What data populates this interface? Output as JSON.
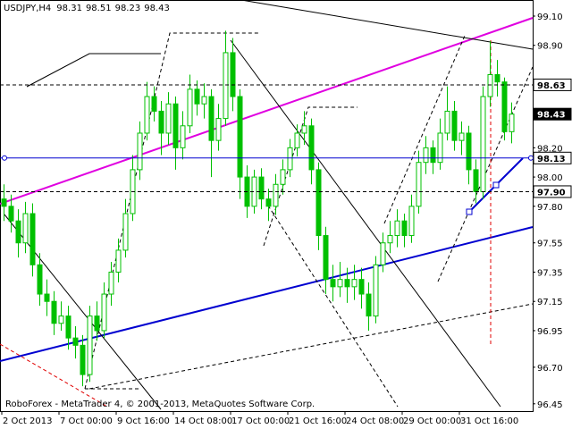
{
  "chart_data": {
    "type": "candlestick",
    "symbol": "USDJPY,H4",
    "footer": "RoboForex - MetaTrader 4, © 2001-2013, MetaQuotes Software Corp.",
    "categories": [
      "2 Oct 2013",
      null,
      null,
      null,
      null,
      null,
      null,
      null,
      "7 Oct 00:00",
      null,
      null,
      null,
      null,
      null,
      null,
      null,
      "9 Oct 16:00",
      null,
      null,
      null,
      null,
      null,
      null,
      null,
      "14 Oct 08:00",
      null,
      null,
      null,
      null,
      null,
      null,
      null,
      "17 Oct 00:00",
      null,
      null,
      null,
      null,
      null,
      null,
      null,
      "21 Oct 16:00",
      null,
      null,
      null,
      null,
      null,
      null,
      null,
      "24 Oct 08:00",
      null,
      null,
      null,
      null,
      null,
      null,
      null,
      "29 Oct 00:00",
      null,
      null,
      null,
      null,
      null,
      null,
      null,
      "31 Oct 16:00",
      null,
      null,
      null,
      null,
      null,
      null,
      null
    ],
    "open": [
      97.85,
      97.8,
      97.7,
      97.55,
      97.75,
      97.4,
      97.2,
      97.15,
      97.0,
      97.05,
      96.9,
      96.85,
      96.65,
      97.05,
      96.95,
      97.2,
      97.35,
      97.5,
      97.75,
      98.05,
      98.3,
      98.55,
      98.45,
      98.3,
      98.5,
      98.2,
      98.35,
      98.6,
      98.5,
      98.55,
      98.25,
      98.4,
      98.85,
      98.55,
      98.0,
      97.8,
      98.0,
      97.85,
      97.8,
      97.95,
      98.05,
      98.2,
      98.3,
      98.35,
      98.05,
      97.6,
      97.3,
      97.25,
      97.3,
      97.25,
      97.3,
      97.2,
      97.05,
      97.4,
      97.55,
      97.6,
      97.7,
      97.6,
      97.8,
      98.1,
      98.2,
      98.1,
      98.3,
      98.45,
      98.25,
      98.3,
      98.05,
      97.9,
      98.55,
      98.7,
      98.65,
      98.31
    ],
    "high": [
      97.95,
      97.88,
      97.78,
      97.83,
      97.82,
      97.48,
      97.3,
      97.22,
      97.15,
      97.12,
      96.98,
      96.92,
      97.12,
      97.15,
      97.28,
      97.42,
      97.58,
      97.85,
      98.15,
      98.38,
      98.65,
      98.62,
      98.52,
      98.58,
      98.55,
      98.45,
      98.7,
      98.66,
      98.64,
      98.6,
      98.5,
      99.0,
      98.95,
      98.6,
      98.08,
      98.05,
      98.06,
      97.92,
      98.02,
      98.12,
      98.26,
      98.36,
      98.45,
      98.4,
      98.1,
      97.66,
      97.4,
      97.42,
      97.38,
      97.4,
      97.38,
      97.28,
      97.46,
      97.62,
      97.7,
      97.78,
      97.75,
      97.88,
      98.18,
      98.28,
      98.25,
      98.4,
      98.62,
      98.52,
      98.38,
      98.35,
      98.12,
      98.62,
      98.93,
      98.8,
      98.68,
      98.51
    ],
    "low": [
      97.7,
      97.62,
      97.45,
      97.48,
      97.32,
      97.12,
      97.05,
      96.92,
      96.95,
      96.82,
      96.76,
      96.57,
      96.6,
      96.88,
      96.9,
      97.12,
      97.28,
      97.45,
      97.7,
      97.98,
      98.25,
      98.38,
      98.15,
      98.22,
      98.05,
      98.12,
      98.3,
      98.42,
      98.4,
      98.0,
      98.18,
      98.35,
      98.45,
      97.85,
      97.72,
      97.75,
      97.78,
      97.7,
      97.74,
      97.88,
      98.0,
      98.14,
      98.22,
      97.95,
      97.5,
      97.2,
      97.15,
      97.18,
      97.14,
      97.16,
      97.1,
      96.95,
      97.0,
      97.35,
      97.48,
      97.52,
      97.52,
      97.55,
      97.75,
      98.02,
      98.02,
      98.05,
      98.25,
      98.18,
      98.15,
      97.95,
      97.82,
      97.85,
      98.48,
      98.55,
      98.25,
      98.23
    ],
    "close": [
      97.8,
      97.7,
      97.55,
      97.75,
      97.4,
      97.2,
      97.15,
      97.0,
      97.05,
      96.9,
      96.85,
      96.65,
      97.05,
      96.95,
      97.2,
      97.35,
      97.5,
      97.75,
      98.05,
      98.3,
      98.55,
      98.45,
      98.3,
      98.5,
      98.2,
      98.35,
      98.6,
      98.5,
      98.55,
      98.25,
      98.4,
      98.85,
      98.55,
      98.0,
      97.8,
      98.0,
      97.85,
      97.8,
      97.95,
      98.05,
      98.2,
      98.3,
      98.35,
      98.05,
      97.6,
      97.3,
      97.25,
      97.3,
      97.25,
      97.3,
      97.2,
      97.05,
      97.4,
      97.55,
      97.6,
      97.7,
      97.6,
      97.8,
      98.1,
      98.2,
      98.1,
      98.3,
      98.45,
      98.25,
      98.3,
      98.05,
      97.9,
      98.55,
      98.7,
      98.65,
      98.31,
      98.43
    ],
    "up_color": "#00c000",
    "down_color": "#00c000",
    "ylim": [
      96.4,
      99.21
    ],
    "yticks": [
      {
        "value": 99.1,
        "label": "99.10"
      },
      {
        "value": 98.9,
        "label": "98.90"
      },
      {
        "value": 98.2,
        "label": "98.20"
      },
      {
        "value": 98,
        "label": "98.00"
      },
      {
        "value": 97.8,
        "label": "97.80"
      },
      97.55,
      97.35,
      97.15,
      96.95,
      {
        "value": 96.7,
        "label": "96.70"
      },
      96.45
    ],
    "levels": [
      {
        "value": 98.63,
        "style": "dashed"
      },
      {
        "value": 98.43,
        "style": "price"
      },
      {
        "value": 98.13,
        "style": "solid"
      },
      {
        "value": 97.9,
        "label": "97.90",
        "style": "dashed"
      }
    ],
    "grid": false
  }
}
